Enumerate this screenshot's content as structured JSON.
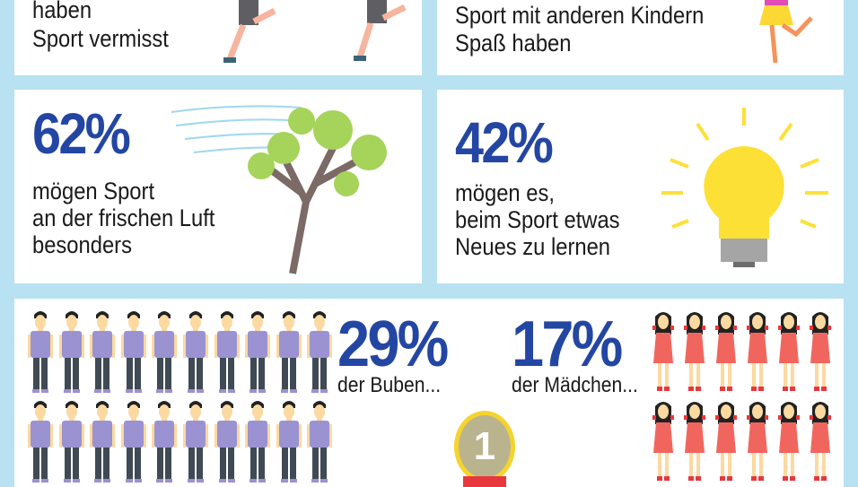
{
  "cards": {
    "top_left": {
      "lines": [
        "haben",
        "Sport vermisst"
      ]
    },
    "top_right": {
      "lines": [
        "Sport mit anderen Kindern",
        "Spaß haben"
      ]
    },
    "mid_left": {
      "percent": "62%",
      "lines": [
        "mögen Sport",
        "an der frischen Luft",
        "besonders"
      ]
    },
    "mid_right": {
      "percent": "42%",
      "lines": [
        "mögen es,",
        "beim Sport etwas",
        "Neues zu lernen"
      ]
    },
    "bottom": {
      "boys_percent": "29%",
      "boys_label": "der Buben...",
      "girls_percent": "17%",
      "girls_label": "der Mädchen...",
      "medal_number": "1"
    }
  },
  "colors": {
    "accent": "#2446a3",
    "background": "#b8e1f1",
    "boy_shirt": "#9b92d2",
    "girl_dress": "#f0665f",
    "medal": "#b9b48e"
  }
}
